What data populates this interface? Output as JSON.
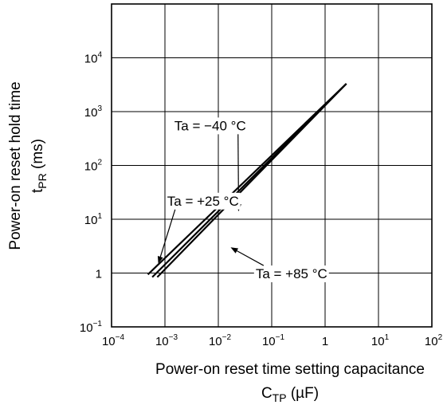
{
  "chart_data": {
    "type": "line",
    "title": "",
    "xscale": "log",
    "yscale": "log",
    "xlim": [
      0.0001,
      100
    ],
    "ylim": [
      0.1,
      100000
    ],
    "grid": true,
    "xlabel": "Power-on reset time setting capacitance",
    "xlabel_symbol": "C",
    "xlabel_subscript": "TP",
    "xlabel_unit": " (µF)",
    "ylabel": "Power-on reset hold time",
    "ylabel_symbol": "t",
    "ylabel_subscript": "PR",
    "ylabel_unit": " (ms)",
    "x_ticks": [
      {
        "value": 0.0001,
        "base": "10",
        "exp": "−4"
      },
      {
        "value": 0.001,
        "base": "10",
        "exp": "−3"
      },
      {
        "value": 0.01,
        "base": "10",
        "exp": "−2"
      },
      {
        "value": 0.1,
        "base": "10",
        "exp": "−1"
      },
      {
        "value": 1,
        "base": "1",
        "exp": ""
      },
      {
        "value": 10,
        "base": "10",
        "exp": "1"
      },
      {
        "value": 100,
        "base": "10",
        "exp": "2"
      }
    ],
    "y_ticks": [
      {
        "value": 0.1,
        "base": "10",
        "exp": "−1"
      },
      {
        "value": 1,
        "base": "1",
        "exp": ""
      },
      {
        "value": 10,
        "base": "10",
        "exp": "1"
      },
      {
        "value": 100,
        "base": "10",
        "exp": "2"
      },
      {
        "value": 1000,
        "base": "10",
        "exp": "3"
      },
      {
        "value": 10000,
        "base": "10",
        "exp": "4"
      }
    ],
    "series": [
      {
        "name": "Ta = −40 °C",
        "x": [
          0.00048,
          2.5
        ],
        "y": [
          0.94,
          3300
        ]
      },
      {
        "name": "Ta = +25 °C",
        "x": [
          0.00058,
          2.5
        ],
        "y": [
          0.84,
          3300
        ]
      },
      {
        "name": "Ta = +85 °C",
        "x": [
          0.00072,
          2.5
        ],
        "y": [
          0.84,
          3300
        ]
      }
    ],
    "annotations": [
      {
        "text": "Ta = −40 °C",
        "series": 0,
        "label_at": [
          0.0015,
          450
        ],
        "arrow_to": [
          0.024,
          14
        ]
      },
      {
        "text": "Ta = +25 °C",
        "series": 1,
        "label_at": [
          0.0011,
          18
        ],
        "arrow_to": [
          0.00075,
          1.5
        ]
      },
      {
        "text": "Ta = +85 °C",
        "series": 2,
        "label_at": [
          0.05,
          0.8
        ],
        "arrow_to": [
          0.017,
          3
        ]
      }
    ],
    "line_color": "#000000",
    "grid_color": "#000000"
  }
}
